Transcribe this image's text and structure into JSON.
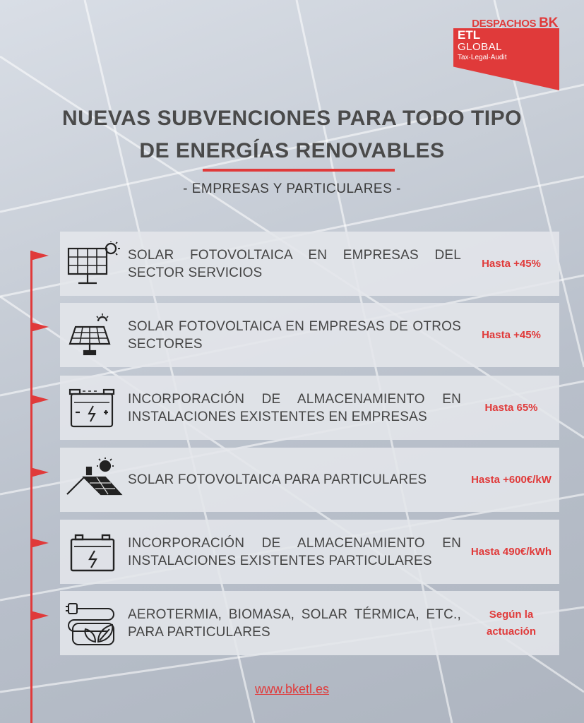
{
  "logo": {
    "despachos": "DESPACHOS",
    "bk": "BK",
    "etl": "ETL",
    "global": "GLOBAL",
    "tagline": "Tax·Legal·Audit"
  },
  "title_line1": "NUEVAS SUBVENCIONES PARA TODO TIPO",
  "title_line2": "DE ENERGÍAS RENOVABLES",
  "subtitle": "- EMPRESAS Y PARTICULARES -",
  "items": [
    {
      "icon": "solar-panel-sun-icon",
      "label": "SOLAR FOTOVOLTAICA EN EMPRESAS DEL SECTOR SERVICIOS",
      "amount": "Hasta +45%"
    },
    {
      "icon": "solar-panel-stand-icon",
      "label": "SOLAR FOTOVOLTAICA EN EMPRESAS DE OTROS SECTORES",
      "amount": "Hasta +45%"
    },
    {
      "icon": "battery-storage-icon",
      "label": "INCORPORACIÓN DE ALMACENAMIENTO EN INSTALACIONES EXISTENTES EN EMPRESAS",
      "amount": "Hasta 65%"
    },
    {
      "icon": "solar-roof-house-icon",
      "label": "SOLAR FOTOVOLTAICA PARA PARTICULARES",
      "amount": "Hasta +600€/kW"
    },
    {
      "icon": "battery-icon",
      "label": "INCORPORACIÓN DE ALMACENAMIENTO EN INSTALACIONES EXISTENTES PARTICULARES",
      "amount": "Hasta 490€/kWh"
    },
    {
      "icon": "eco-plug-icon",
      "label": "AEROTERMIA, BIOMASA, SOLAR TÉRMICA, ETC., PARA PARTICULARES",
      "amount": "Según la actuación"
    }
  ],
  "url": "www.bketl.es",
  "colors": {
    "accent": "#e03a3a",
    "text": "#444444",
    "card": "#e4e6eb"
  }
}
